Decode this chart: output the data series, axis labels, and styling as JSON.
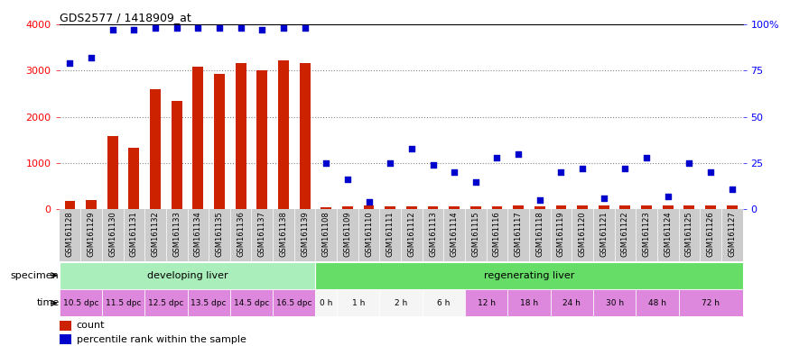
{
  "title": "GDS2577 / 1418909_at",
  "samples": [
    "GSM161128",
    "GSM161129",
    "GSM161130",
    "GSM161131",
    "GSM161132",
    "GSM161133",
    "GSM161134",
    "GSM161135",
    "GSM161136",
    "GSM161137",
    "GSM161138",
    "GSM161139",
    "GSM161108",
    "GSM161109",
    "GSM161110",
    "GSM161111",
    "GSM161112",
    "GSM161113",
    "GSM161114",
    "GSM161115",
    "GSM161116",
    "GSM161117",
    "GSM161118",
    "GSM161119",
    "GSM161120",
    "GSM161121",
    "GSM161122",
    "GSM161123",
    "GSM161124",
    "GSM161125",
    "GSM161126",
    "GSM161127"
  ],
  "counts": [
    180,
    200,
    1580,
    1330,
    2600,
    2350,
    3080,
    2920,
    3160,
    3000,
    3220,
    3160,
    50,
    70,
    80,
    60,
    70,
    55,
    60,
    65,
    70,
    80,
    60,
    75,
    80,
    90,
    80,
    85,
    75,
    90,
    85,
    80
  ],
  "percentiles": [
    79,
    82,
    97,
    97,
    98,
    98,
    98,
    98,
    98,
    97,
    98,
    98,
    25,
    16,
    4,
    25,
    33,
    24,
    20,
    15,
    28,
    30,
    5,
    20,
    22,
    6,
    22,
    28,
    7,
    25,
    20,
    11
  ],
  "specimen_groups": [
    {
      "label": "developing liver",
      "start": 0,
      "end": 12,
      "color": "#aaeebb"
    },
    {
      "label": "regenerating liver",
      "start": 12,
      "end": 32,
      "color": "#66dd66"
    }
  ],
  "time_labels": [
    {
      "label": "10.5 dpc",
      "start": 0,
      "end": 2,
      "color": "#dd88dd"
    },
    {
      "label": "11.5 dpc",
      "start": 2,
      "end": 4,
      "color": "#dd88dd"
    },
    {
      "label": "12.5 dpc",
      "start": 4,
      "end": 6,
      "color": "#dd88dd"
    },
    {
      "label": "13.5 dpc",
      "start": 6,
      "end": 8,
      "color": "#dd88dd"
    },
    {
      "label": "14.5 dpc",
      "start": 8,
      "end": 10,
      "color": "#dd88dd"
    },
    {
      "label": "16.5 dpc",
      "start": 10,
      "end": 12,
      "color": "#dd88dd"
    },
    {
      "label": "0 h",
      "start": 12,
      "end": 13,
      "color": "#f5f5f5"
    },
    {
      "label": "1 h",
      "start": 13,
      "end": 15,
      "color": "#f5f5f5"
    },
    {
      "label": "2 h",
      "start": 15,
      "end": 17,
      "color": "#f5f5f5"
    },
    {
      "label": "6 h",
      "start": 17,
      "end": 19,
      "color": "#f5f5f5"
    },
    {
      "label": "12 h",
      "start": 19,
      "end": 21,
      "color": "#dd88dd"
    },
    {
      "label": "18 h",
      "start": 21,
      "end": 23,
      "color": "#dd88dd"
    },
    {
      "label": "24 h",
      "start": 23,
      "end": 25,
      "color": "#dd88dd"
    },
    {
      "label": "30 h",
      "start": 25,
      "end": 27,
      "color": "#dd88dd"
    },
    {
      "label": "48 h",
      "start": 27,
      "end": 29,
      "color": "#dd88dd"
    },
    {
      "label": "72 h",
      "start": 29,
      "end": 32,
      "color": "#dd88dd"
    }
  ],
  "bar_color": "#cc2200",
  "dot_color": "#0000cc",
  "ylim_left": [
    0,
    4000
  ],
  "ylim_right": [
    0,
    100
  ],
  "yticks_left": [
    0,
    1000,
    2000,
    3000,
    4000
  ],
  "yticks_right": [
    0,
    25,
    50,
    75,
    100
  ],
  "yticklabels_right": [
    "0",
    "25",
    "50",
    "75",
    "100%"
  ],
  "bg_color": "#ffffff",
  "plot_bg": "#ffffff",
  "grid_color": "#888888",
  "tick_area_color": "#cccccc",
  "legend_items": [
    {
      "color": "#cc2200",
      "label": "count"
    },
    {
      "color": "#0000cc",
      "label": "percentile rank within the sample"
    }
  ]
}
